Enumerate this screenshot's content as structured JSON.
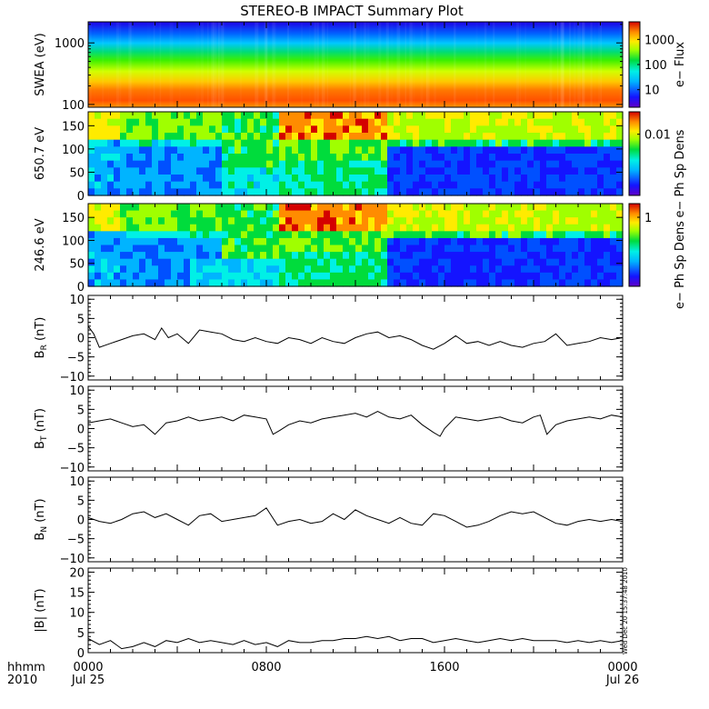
{
  "title": "STEREO-B IMPACT Summary Plot",
  "time_axis": {
    "ticks": [
      {
        "hours": 0,
        "label": "0000",
        "sub": "Jul 25"
      },
      {
        "hours": 8,
        "label": "0800",
        "sub": ""
      },
      {
        "hours": 16,
        "label": "1600",
        "sub": ""
      },
      {
        "hours": 24,
        "label": "0000",
        "sub": "Jul 26"
      }
    ],
    "corner_line1": "hhmm",
    "corner_line2": "2010",
    "range_hours": [
      0,
      24
    ]
  },
  "timestamp": "Wed Dec 20 15:37:48 2010",
  "colors": {
    "line": "#000000",
    "colorbar_low": "#5a00c8",
    "colorbar_high": "#d40000"
  },
  "chart_data": [
    {
      "type": "heatmap",
      "name": "swea",
      "ylabel": "SWEA (eV)",
      "yscale": "log",
      "ylim": [
        90,
        2200
      ],
      "yticks": [
        {
          "value": 100,
          "label": "100"
        },
        {
          "value": 1000,
          "label": "1000"
        }
      ],
      "colorbar": {
        "label": "e− Flux",
        "scale": "log",
        "range": [
          2,
          5000
        ],
        "ticks": [
          {
            "value": 10,
            "label": "10"
          },
          {
            "value": 100,
            "label": "100"
          },
          {
            "value": 1000,
            "label": "1000"
          }
        ]
      }
    },
    {
      "type": "heatmap",
      "name": "pad650",
      "ylabel": "650.7 eV",
      "yscale": "linear",
      "ylim": [
        0,
        180
      ],
      "yticks": [
        {
          "value": 0,
          "label": "0"
        },
        {
          "value": 50,
          "label": "50"
        },
        {
          "value": 100,
          "label": "100"
        },
        {
          "value": 150,
          "label": "150"
        }
      ],
      "colorbar": {
        "label": "e− Ph Sp Dens",
        "scale": "log",
        "range": [
          0.0005,
          0.03
        ],
        "ticks": [
          {
            "value": 0.01,
            "label": "0.01"
          }
        ]
      }
    },
    {
      "type": "heatmap",
      "name": "pad246",
      "ylabel": "246.6 eV",
      "yscale": "linear",
      "ylim": [
        0,
        180
      ],
      "yticks": [
        {
          "value": 0,
          "label": "0"
        },
        {
          "value": 50,
          "label": "50"
        },
        {
          "value": 100,
          "label": "100"
        },
        {
          "value": 150,
          "label": "150"
        }
      ],
      "colorbar": {
        "label": "e− Ph Sp Dens",
        "scale": "log",
        "range": [
          0.03,
          2
        ],
        "ticks": [
          {
            "value": 1,
            "label": "1"
          }
        ]
      }
    },
    {
      "type": "line",
      "name": "br",
      "ylabel_main": "B",
      "ylabel_sub": "R",
      "ylabel_unit": "(nT)",
      "ylim": [
        -11,
        11
      ],
      "yticks": [
        {
          "value": -10,
          "label": "−10"
        },
        {
          "value": -5,
          "label": "−5"
        },
        {
          "value": 0,
          "label": "0"
        },
        {
          "value": 5,
          "label": "5"
        },
        {
          "value": 10,
          "label": "10"
        }
      ],
      "x": [
        0,
        0.25,
        0.5,
        1,
        1.5,
        2,
        2.5,
        3,
        3.3,
        3.6,
        4,
        4.5,
        5,
        5.5,
        6,
        6.5,
        7,
        7.5,
        8,
        8.5,
        9,
        9.5,
        10,
        10.5,
        11,
        11.5,
        12,
        12.5,
        13,
        13.5,
        14,
        14.5,
        15,
        15.5,
        16,
        16.5,
        17,
        17.5,
        18,
        18.5,
        19,
        19.5,
        20,
        20.5,
        21,
        21.5,
        22,
        22.5,
        23,
        23.5,
        24
      ],
      "y": [
        3,
        1,
        -2.5,
        -1.5,
        -0.5,
        0.5,
        1,
        -0.5,
        2.5,
        0,
        1,
        -1.5,
        2,
        1.5,
        1,
        -0.5,
        -1,
        0,
        -1,
        -1.5,
        0,
        -0.5,
        -1.5,
        0,
        -1,
        -1.5,
        0,
        1,
        1.5,
        0,
        0.5,
        -0.5,
        -2,
        -3,
        -1.5,
        0.5,
        -1.5,
        -1,
        -2,
        -1,
        -2,
        -2.5,
        -1.5,
        -1,
        1,
        -2,
        -1.5,
        -1,
        0,
        -0.5,
        0
      ]
    },
    {
      "type": "line",
      "name": "bt",
      "ylabel_main": "B",
      "ylabel_sub": "T",
      "ylabel_unit": "(nT)",
      "ylim": [
        -11,
        11
      ],
      "yticks": [
        {
          "value": -10,
          "label": "−10"
        },
        {
          "value": -5,
          "label": "−5"
        },
        {
          "value": 0,
          "label": "0"
        },
        {
          "value": 5,
          "label": "5"
        },
        {
          "value": 10,
          "label": "10"
        }
      ],
      "x": [
        0,
        0.5,
        1,
        1.5,
        2,
        2.5,
        3,
        3.5,
        4,
        4.5,
        5,
        5.5,
        6,
        6.5,
        7,
        7.5,
        8,
        8.3,
        8.6,
        9,
        9.5,
        10,
        10.5,
        11,
        11.5,
        12,
        12.5,
        13,
        13.5,
        14,
        14.5,
        15,
        15.5,
        15.8,
        16,
        16.5,
        17,
        17.5,
        18,
        18.5,
        19,
        19.5,
        20,
        20.3,
        20.6,
        21,
        21.5,
        22,
        22.5,
        23,
        23.5,
        24
      ],
      "y": [
        1.5,
        2,
        2.5,
        1.5,
        0.5,
        1,
        -1.5,
        1.5,
        2,
        3,
        2,
        2.5,
        3,
        2,
        3.5,
        3,
        2.5,
        -1.5,
        -0.5,
        1,
        2,
        1.5,
        2.5,
        3,
        3.5,
        4,
        3,
        4.5,
        3,
        2.5,
        3.5,
        1,
        -1,
        -2,
        0,
        3,
        2.5,
        2,
        2.5,
        3,
        2,
        1.5,
        3,
        3.5,
        -1.5,
        1,
        2,
        2.5,
        3,
        2.5,
        3.5,
        3
      ]
    },
    {
      "type": "line",
      "name": "bn",
      "ylabel_main": "B",
      "ylabel_sub": "N",
      "ylabel_unit": "(nT)",
      "ylim": [
        -11,
        11
      ],
      "yticks": [
        {
          "value": -10,
          "label": "−10"
        },
        {
          "value": -5,
          "label": "−5"
        },
        {
          "value": 0,
          "label": "0"
        },
        {
          "value": 5,
          "label": "5"
        },
        {
          "value": 10,
          "label": "10"
        }
      ],
      "x": [
        0,
        0.5,
        1,
        1.5,
        2,
        2.5,
        3,
        3.5,
        4,
        4.5,
        5,
        5.5,
        6,
        6.5,
        7,
        7.5,
        8,
        8.5,
        9,
        9.5,
        10,
        10.5,
        11,
        11.5,
        12,
        12.5,
        13,
        13.5,
        14,
        14.5,
        15,
        15.5,
        16,
        16.5,
        17,
        17.5,
        18,
        18.5,
        19,
        19.5,
        20,
        20.5,
        21,
        21.5,
        22,
        22.5,
        23,
        23.5,
        24
      ],
      "y": [
        0.5,
        -0.5,
        -1,
        0,
        1.5,
        2,
        0.5,
        1.5,
        0,
        -1.5,
        1,
        1.5,
        -0.5,
        0,
        0.5,
        1,
        3,
        -1.5,
        -0.5,
        0,
        -1,
        -0.5,
        1.5,
        0,
        2.5,
        1,
        0,
        -1,
        0.5,
        -1,
        -1.5,
        1.5,
        1,
        -0.5,
        -2,
        -1.5,
        -0.5,
        1,
        2,
        1.5,
        2,
        0.5,
        -1,
        -1.5,
        -0.5,
        0,
        -0.5,
        0,
        -0.5
      ]
    },
    {
      "type": "line",
      "name": "bmag",
      "ylabel_main": "|B|",
      "ylabel_sub": "",
      "ylabel_unit": "(nT)",
      "ylim": [
        0,
        21
      ],
      "yticks": [
        {
          "value": 0,
          "label": "0"
        },
        {
          "value": 5,
          "label": "5"
        },
        {
          "value": 10,
          "label": "10"
        },
        {
          "value": 15,
          "label": "15"
        },
        {
          "value": 20,
          "label": "20"
        }
      ],
      "x": [
        0,
        0.5,
        1,
        1.5,
        2,
        2.5,
        3,
        3.5,
        4,
        4.5,
        5,
        5.5,
        6,
        6.5,
        7,
        7.5,
        8,
        8.5,
        9,
        9.5,
        10,
        10.5,
        11,
        11.5,
        12,
        12.5,
        13,
        13.5,
        14,
        14.5,
        15,
        15.5,
        16,
        16.5,
        17,
        17.5,
        18,
        18.5,
        19,
        19.5,
        20,
        20.5,
        21,
        21.5,
        22,
        22.5,
        23,
        23.5,
        24
      ],
      "y": [
        3.5,
        2,
        3,
        1,
        1.5,
        2.5,
        1.5,
        3,
        2.5,
        3.5,
        2.5,
        3,
        2.5,
        2,
        3,
        2,
        2.5,
        1.5,
        3,
        2.5,
        2.5,
        3,
        3,
        3.5,
        3.5,
        4,
        3.5,
        4,
        3,
        3.5,
        3.5,
        2.5,
        3,
        3.5,
        3,
        2.5,
        3,
        3.5,
        3,
        3.5,
        3,
        3,
        3,
        2.5,
        3,
        2.5,
        3,
        2.5,
        3
      ]
    }
  ]
}
